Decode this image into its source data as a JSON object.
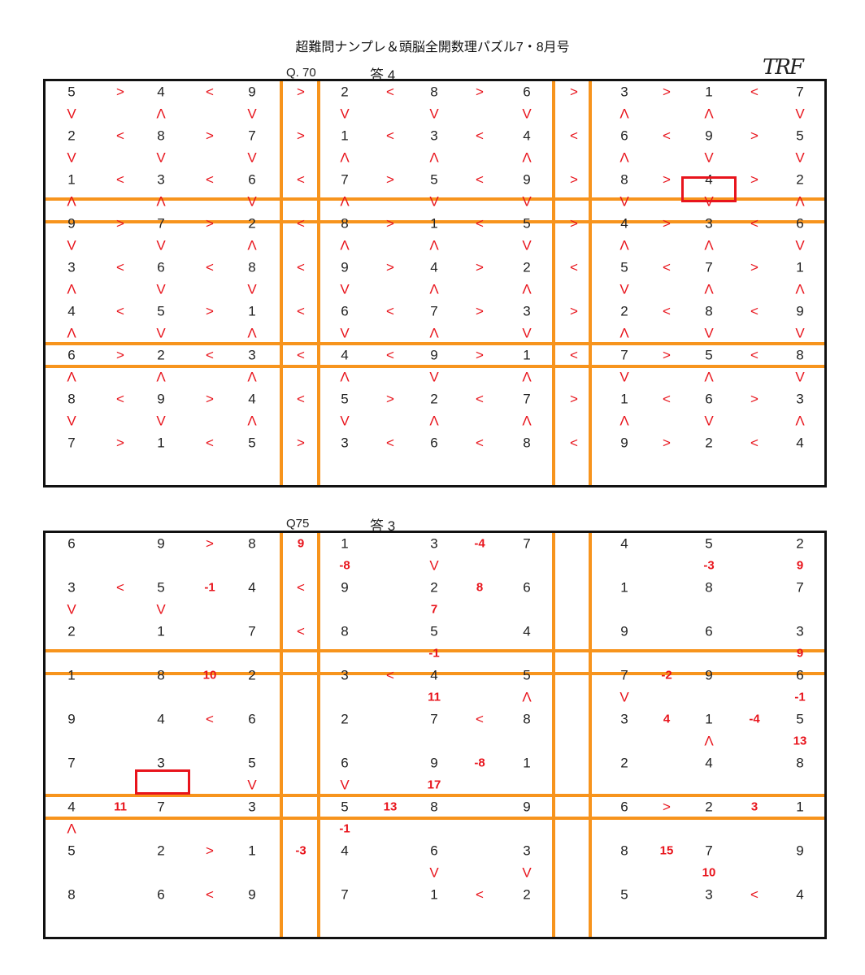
{
  "title": "超難問ナンプレ＆頭脳全開数理パズル7・8月号",
  "signature": "TRF",
  "puzzle1": {
    "label": "Q. 70",
    "answer": "答 4",
    "rows": [
      [
        "5",
        ">",
        "4",
        "<",
        "9",
        "|",
        ">",
        "|",
        "2",
        "<",
        "8",
        ">",
        "6",
        "|",
        ">",
        "|",
        "3",
        ">",
        "1",
        "<",
        "7"
      ],
      [
        "V",
        "",
        "Λ",
        "",
        "V",
        "",
        "",
        "",
        "V",
        "",
        "V",
        "",
        "V",
        "",
        "",
        "",
        "Λ",
        "",
        "Λ",
        "",
        "V"
      ],
      [
        "2",
        "<",
        "8",
        ">",
        "7",
        "|",
        ">",
        "|",
        "1",
        "<",
        "3",
        "<",
        "4",
        "|",
        "<",
        "|",
        "6",
        "<",
        "9",
        ">",
        "5"
      ],
      [
        "V",
        "",
        "V",
        "",
        "V",
        "",
        "",
        "",
        "Λ",
        "",
        "Λ",
        "",
        "Λ",
        "",
        "",
        "",
        "Λ",
        "",
        "V",
        "",
        "V"
      ],
      [
        "1",
        "<",
        "3",
        "<",
        "6",
        "|",
        "<",
        "|",
        "7",
        ">",
        "5",
        "<",
        "9",
        "|",
        ">",
        "|",
        "8",
        ">",
        "4",
        ">",
        "2"
      ],
      [
        "Λ",
        "",
        "Λ",
        "",
        "V",
        "",
        "",
        "",
        "Λ",
        "",
        "V",
        "",
        "V",
        "",
        "",
        "",
        "V",
        "",
        "V",
        "",
        "Λ"
      ],
      [
        "9",
        ">",
        "7",
        ">",
        "2",
        "|",
        "<",
        "|",
        "8",
        ">",
        "1",
        "<",
        "5",
        "|",
        ">",
        "|",
        "4",
        ">",
        "3",
        "<",
        "6"
      ],
      [
        "V",
        "",
        "V",
        "",
        "Λ",
        "",
        "",
        "",
        "Λ",
        "",
        "Λ",
        "",
        "V",
        "",
        "",
        "",
        "Λ",
        "",
        "Λ",
        "",
        "V"
      ],
      [
        "3",
        "<",
        "6",
        "<",
        "8",
        "|",
        "<",
        "|",
        "9",
        ">",
        "4",
        ">",
        "2",
        "|",
        "<",
        "|",
        "5",
        "<",
        "7",
        ">",
        "1"
      ],
      [
        "Λ",
        "",
        "V",
        "",
        "V",
        "",
        "",
        "",
        "V",
        "",
        "Λ",
        "",
        "Λ",
        "",
        "",
        "",
        "V",
        "",
        "Λ",
        "",
        "Λ"
      ],
      [
        "4",
        "<",
        "5",
        ">",
        "1",
        "|",
        "<",
        "|",
        "6",
        "<",
        "7",
        ">",
        "3",
        "|",
        ">",
        "|",
        "2",
        "<",
        "8",
        "<",
        "9"
      ],
      [
        "Λ",
        "",
        "V",
        "",
        "Λ",
        "",
        "",
        "",
        "V",
        "",
        "Λ",
        "",
        "V",
        "",
        "",
        "",
        "Λ",
        "",
        "V",
        "",
        "V"
      ],
      [
        "6",
        ">",
        "2",
        "<",
        "3",
        "|",
        "<",
        "|",
        "4",
        "<",
        "9",
        ">",
        "1",
        "|",
        "<",
        "|",
        "7",
        ">",
        "5",
        "<",
        "8"
      ],
      [
        "Λ",
        "",
        "Λ",
        "",
        "Λ",
        "",
        "",
        "",
        "Λ",
        "",
        "V",
        "",
        "Λ",
        "",
        "",
        "",
        "V",
        "",
        "Λ",
        "",
        "V"
      ],
      [
        "8",
        "<",
        "9",
        ">",
        "4",
        "|",
        "<",
        "|",
        "5",
        ">",
        "2",
        "<",
        "7",
        "|",
        ">",
        "|",
        "1",
        "<",
        "6",
        ">",
        "3"
      ],
      [
        "V",
        "",
        "V",
        "",
        "Λ",
        "",
        "",
        "",
        "V",
        "",
        "Λ",
        "",
        "Λ",
        "",
        "",
        "",
        "Λ",
        "",
        "V",
        "",
        "Λ"
      ],
      [
        "7",
        ">",
        "1",
        "<",
        "5",
        "|",
        ">",
        "|",
        "3",
        "<",
        "6",
        "<",
        "8",
        "|",
        "<",
        "|",
        "9",
        ">",
        "2",
        "<",
        "4"
      ]
    ]
  },
  "puzzle2": {
    "label": "Q75",
    "answer": "答 3",
    "rows": [
      [
        "6",
        "",
        "9",
        ">",
        "8",
        "|",
        "9",
        "|",
        "1",
        "",
        "3",
        "-4",
        "7",
        "|",
        "",
        "|",
        "4",
        "",
        "5",
        "",
        "2"
      ],
      [
        "",
        "",
        "",
        "",
        "",
        "",
        "",
        "",
        "-8",
        "",
        "V",
        "",
        "",
        "",
        "",
        "",
        "",
        "",
        "-3",
        "",
        "9"
      ],
      [
        "3",
        "<",
        "5",
        "-1",
        "4",
        "|",
        "<",
        "|",
        "9",
        "",
        "2",
        "8",
        "6",
        "|",
        "",
        "|",
        "1",
        "",
        "8",
        "",
        "7"
      ],
      [
        "V",
        "",
        "V",
        "",
        "",
        "",
        "",
        "",
        "",
        "",
        "7",
        "",
        "",
        "",
        "",
        "",
        "",
        "",
        "",
        "",
        ""
      ],
      [
        "2",
        "",
        "1",
        "",
        "7",
        "|",
        "<",
        "|",
        "8",
        "",
        "5",
        "",
        "4",
        "|",
        "",
        "|",
        "9",
        "",
        "6",
        "",
        "3"
      ],
      [
        "",
        "",
        "",
        "",
        "",
        "",
        "",
        "",
        "",
        "",
        "-1",
        "",
        "",
        "",
        "",
        "",
        "",
        "",
        "",
        "",
        "9"
      ],
      [
        "1",
        "",
        "8",
        "10",
        "2",
        "|",
        "",
        "|",
        "3",
        "<",
        "4",
        "",
        "5",
        "|",
        "",
        "|",
        "7",
        "-2",
        "9",
        "",
        "6"
      ],
      [
        "",
        "",
        "",
        "",
        "",
        "",
        "",
        "",
        "",
        "",
        "11",
        "",
        "Λ",
        "",
        "",
        "",
        "V",
        "",
        "",
        "",
        "-1"
      ],
      [
        "9",
        "",
        "4",
        "<",
        "6",
        "|",
        "",
        "|",
        "2",
        "",
        "7",
        "<",
        "8",
        "|",
        "",
        "|",
        "3",
        "4",
        "1",
        "-4",
        "5"
      ],
      [
        "",
        "",
        "",
        "",
        "",
        "",
        "",
        "",
        "",
        "",
        "",
        "",
        "",
        "",
        "",
        "",
        "",
        "",
        "Λ",
        "",
        "13"
      ],
      [
        "7",
        "",
        "3",
        "",
        "5",
        "|",
        "",
        "|",
        "6",
        "",
        "9",
        "-8",
        "1",
        "|",
        "",
        "|",
        "2",
        "",
        "4",
        "",
        "8"
      ],
      [
        "",
        "",
        "",
        "",
        "V",
        "",
        "",
        "",
        "V",
        "",
        "17",
        "",
        "",
        "",
        "",
        "",
        "",
        "",
        "",
        "",
        ""
      ],
      [
        "4",
        "11",
        "7",
        "",
        "3",
        "|",
        "",
        "|",
        "5",
        "13",
        "8",
        "",
        "9",
        "|",
        "",
        "|",
        "6",
        ">",
        "2",
        "3",
        "1"
      ],
      [
        "Λ",
        "",
        "",
        "",
        "",
        "",
        "",
        "",
        "-1",
        "",
        "",
        "",
        "",
        "",
        "",
        "",
        "",
        "",
        "",
        "",
        ""
      ],
      [
        "5",
        "",
        "2",
        ">",
        "1",
        "|",
        "-3",
        "|",
        "4",
        "",
        "6",
        "",
        "3",
        "|",
        "",
        "|",
        "8",
        "15",
        "7",
        "",
        "9"
      ],
      [
        "",
        "",
        "",
        "",
        "",
        "",
        "",
        "",
        "",
        "",
        "V",
        "",
        "V",
        "",
        "",
        "",
        "",
        "",
        "10",
        "",
        ""
      ],
      [
        "8",
        "",
        "6",
        "<",
        "9",
        "|",
        "",
        "|",
        "7",
        "",
        "1",
        "<",
        "2",
        "|",
        "",
        "|",
        "5",
        "",
        "3",
        "<",
        "4"
      ]
    ]
  }
}
